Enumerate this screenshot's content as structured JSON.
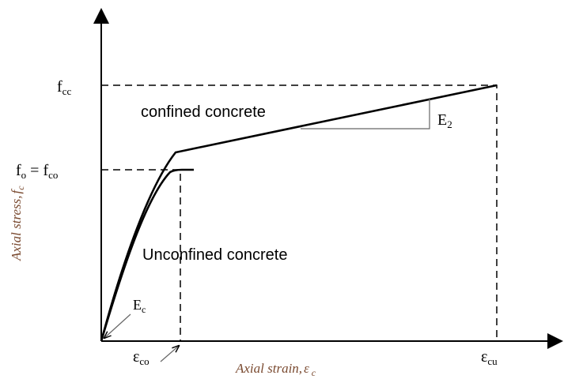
{
  "labels": {
    "fcc": {
      "parts": [
        "f",
        "cc"
      ]
    },
    "fo": {
      "parts": [
        "f",
        "o",
        " = f",
        "co"
      ]
    },
    "confined": "confined concrete",
    "e2": {
      "parts": [
        "E",
        "2"
      ]
    },
    "unconfined": "Unconfined concrete",
    "ec": {
      "parts": [
        "E",
        "c"
      ]
    },
    "eco": {
      "parts": [
        "ε",
        "co"
      ]
    },
    "ecu": {
      "parts": [
        "ε",
        "cu"
      ]
    },
    "x_axis": {
      "parts": [
        "Axial strain,",
        "ε",
        "c"
      ]
    },
    "y_axis": {
      "parts": [
        "Axial stress,",
        "f",
        "c"
      ]
    }
  }
}
